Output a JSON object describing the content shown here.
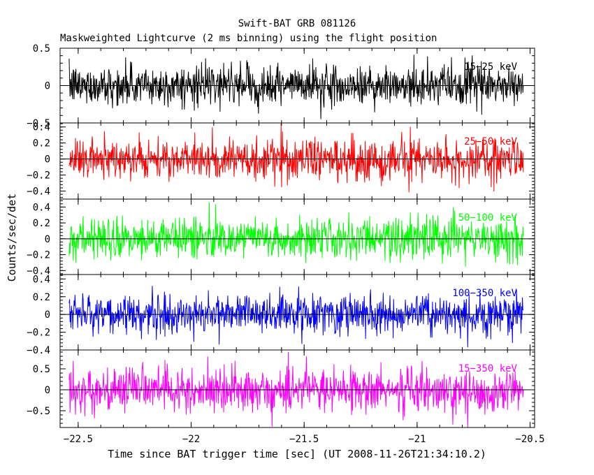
{
  "chart_data": {
    "type": "line",
    "title": "Swift-BAT GRB 081126",
    "subtitle": "Maskweighted Lightcurve (2 ms binning) using the flight position",
    "xlabel": "Time since BAT trigger time [sec] (UT 2008-11-26T21:34:10.2)",
    "ylabel": "Counts/sec/det",
    "xlim": [
      -22.58,
      -20.48
    ],
    "x_ticks": [
      -22.5,
      -22,
      -21.5,
      -21,
      -20.5
    ],
    "x_tick_labels": [
      "−22.5",
      "−22",
      "−21.5",
      "−21",
      "−20.5"
    ],
    "x_range_data": [
      -22.54,
      -20.53
    ],
    "bin_width": 0.002,
    "grid": false,
    "panels": [
      {
        "name": "15−25 keV",
        "color": "#000000",
        "ylim": [
          -0.5,
          0.5
        ],
        "yticks": [
          -0.5,
          0,
          0.5
        ],
        "ytick_labels": [
          "−0.5",
          "0",
          "0.5"
        ],
        "noise_sigma": 0.13,
        "spike_range": [
          -0.45,
          0.5
        ]
      },
      {
        "name": "25−50 keV",
        "color": "#ff0000",
        "ylim": [
          -0.5,
          0.45
        ],
        "yticks": [
          -0.4,
          -0.2,
          0,
          0.2,
          0.4
        ],
        "ytick_labels": [
          "−0.4",
          "−0.2",
          "0",
          "0.2",
          "0.4"
        ],
        "noise_sigma": 0.13,
        "spike_range": [
          -0.5,
          0.45
        ]
      },
      {
        "name": "50−100 keV",
        "color": "#00ff00",
        "ylim": [
          -0.45,
          0.5
        ],
        "yticks": [
          -0.4,
          -0.2,
          0,
          0.2,
          0.4
        ],
        "ytick_labels": [
          "−0.4",
          "−0.2",
          "0",
          "0.2",
          "0.4"
        ],
        "noise_sigma": 0.13,
        "spike_range": [
          -0.45,
          0.5
        ]
      },
      {
        "name": "100−350 keV",
        "color": "#0000ff",
        "ylim": [
          -0.4,
          0.45
        ],
        "yticks": [
          -0.4,
          -0.2,
          0,
          0.2,
          0.4
        ],
        "ytick_labels": [
          "−0.4",
          "−0.2",
          "0",
          "0.2",
          "0.4"
        ],
        "noise_sigma": 0.11,
        "spike_range": [
          -0.4,
          0.45
        ]
      },
      {
        "name": "15−350 keV",
        "color": "#ff00ff",
        "ylim": [
          -0.9,
          0.95
        ],
        "yticks": [
          -0.5,
          0,
          0.5
        ],
        "ytick_labels": [
          "−0.5",
          "0",
          "0.5"
        ],
        "noise_sigma": 0.26,
        "spike_range": [
          -0.9,
          0.9
        ]
      }
    ]
  }
}
